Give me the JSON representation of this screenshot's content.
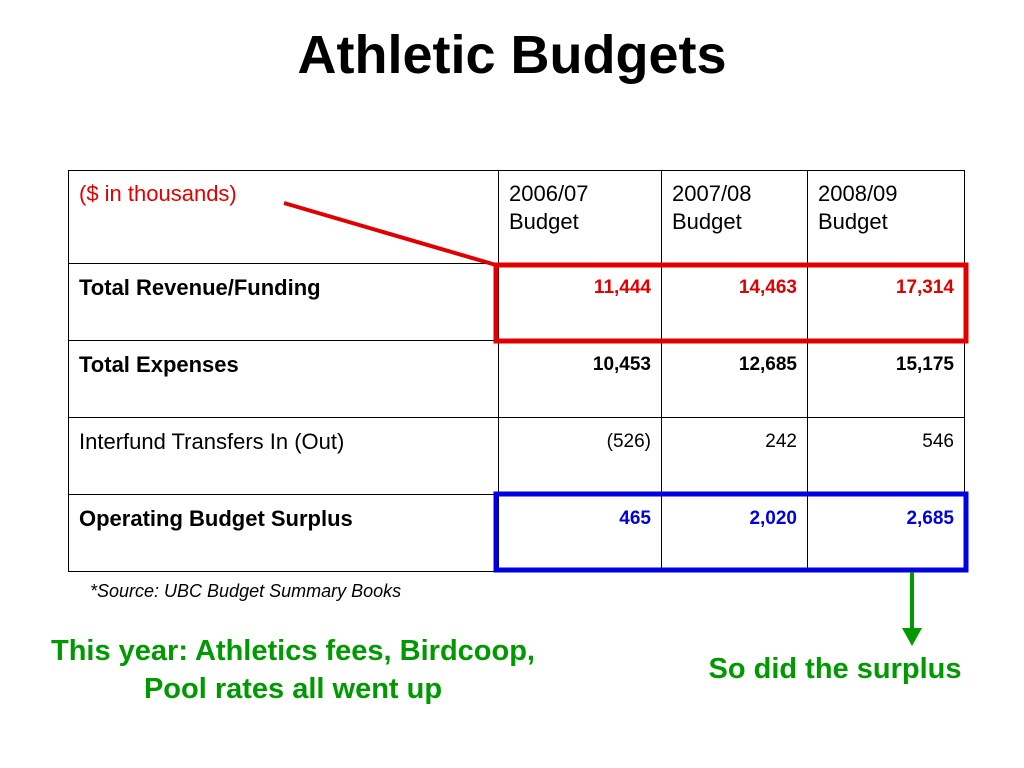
{
  "title": "Athletic Budgets",
  "table": {
    "header": [
      "($ in thousands)",
      "2006/07 Budget",
      "2007/08 Budget",
      "2008/09 Budget"
    ],
    "rows": [
      {
        "label": "Total Revenue/Funding",
        "values": [
          "11,444",
          "14,463",
          "17,314"
        ]
      },
      {
        "label": "Total Expenses",
        "values": [
          "10,453",
          "12,685",
          "15,175"
        ]
      },
      {
        "label": "Interfund Transfers In (Out)",
        "values": [
          "(526)",
          "242",
          "546"
        ]
      },
      {
        "label": "Operating Budget Surplus",
        "values": [
          "465",
          "2,020",
          "2,685"
        ]
      }
    ]
  },
  "source": "*Source: UBC Budget Summary Books",
  "notes": {
    "left": "This year: Athletics fees, Birdcoop, Pool rates all went up",
    "right": "So did the surplus"
  },
  "colors": {
    "highlight_revenue": "#e00000",
    "highlight_surplus": "#0000e0",
    "note_text": "#009900"
  }
}
